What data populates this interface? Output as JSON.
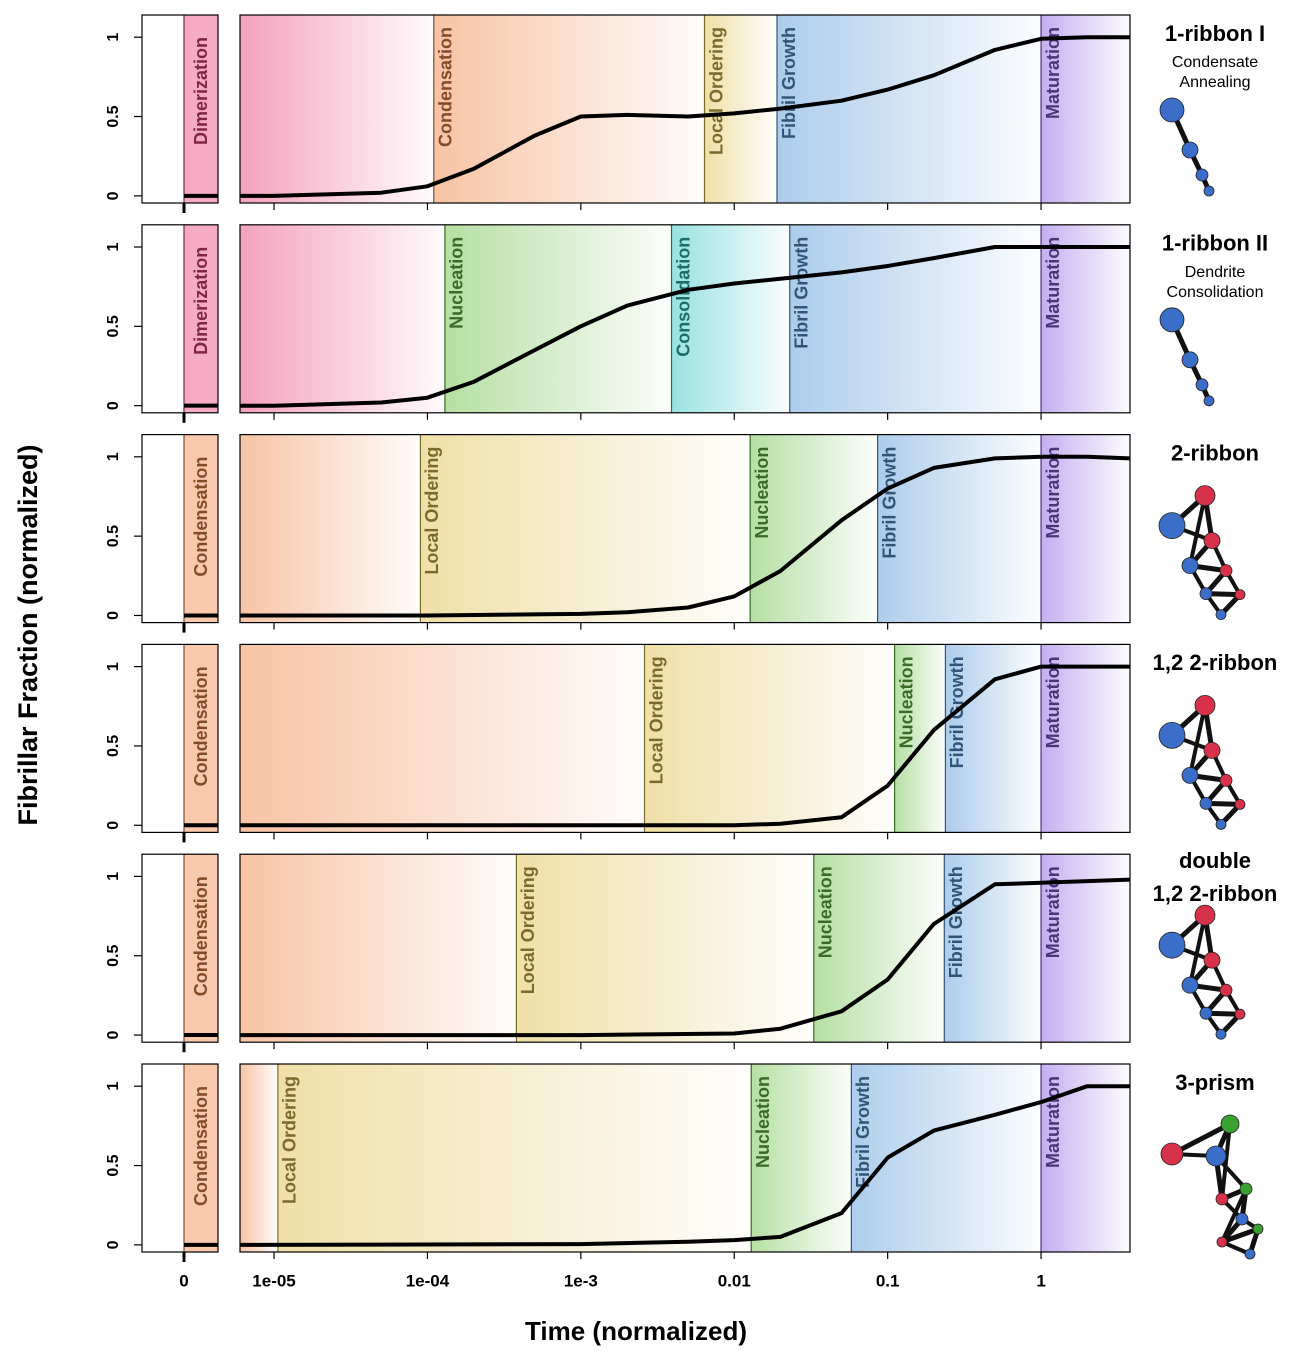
{
  "chart_data": {
    "type": "line",
    "xlabel": "Time (normalized)",
    "ylabel": "Fibrillar Fraction (normalized)",
    "xscale": "log",
    "xlim": [
      6e-06,
      3.8
    ],
    "xticks": [
      0,
      {
        "value": 1e-05,
        "label": "1e-05"
      },
      {
        "value": 0.0001,
        "label": "1e-04"
      },
      {
        "value": 0.001,
        "label": "1e-3"
      },
      0.01,
      0.1,
      1
    ],
    "ylim": [
      -0.045,
      1.14
    ],
    "yticks": [
      0,
      0.5,
      1
    ],
    "line_color": "#000000",
    "panels": [
      {
        "title": [
          "1-ribbon I"
        ],
        "subtitle": [
          "Condensate",
          "Annealing"
        ],
        "phases": [
          {
            "name": "Dimerization",
            "start": 0,
            "color": "#e8457a"
          },
          {
            "name": "Condensation",
            "start": 0.00011,
            "color": "#f0884a"
          },
          {
            "name": "Local Ordering",
            "start": 0.0064,
            "color": "#e0c050"
          },
          {
            "name": "Fibril Growth",
            "start": 0.019,
            "color": "#5a9ad8"
          },
          {
            "name": "Maturation",
            "start": 1,
            "color": "#8a5ee0"
          }
        ],
        "value_at_0": 0,
        "x": [
          6e-06,
          1e-05,
          5e-05,
          0.0001,
          0.0002,
          0.0005,
          0.001,
          0.002,
          0.005,
          0.01,
          0.02,
          0.05,
          0.1,
          0.2,
          0.5,
          1,
          2,
          3.8
        ],
        "values": [
          0,
          0,
          0.02,
          0.06,
          0.17,
          0.38,
          0.5,
          0.51,
          0.5,
          0.52,
          0.55,
          0.6,
          0.67,
          0.76,
          0.92,
          0.99,
          1,
          1
        ]
      },
      {
        "title": [
          "1-ribbon II"
        ],
        "subtitle": [
          "Dendrite",
          "Consolidation"
        ],
        "phases": [
          {
            "name": "Dimerization",
            "start": 0,
            "color": "#e8457a"
          },
          {
            "name": "Nucleation",
            "start": 0.00013,
            "color": "#6cc048"
          },
          {
            "name": "Consolidation",
            "start": 0.0039,
            "color": "#34c4c4"
          },
          {
            "name": "Fibril Growth",
            "start": 0.023,
            "color": "#5a9ad8"
          },
          {
            "name": "Maturation",
            "start": 1,
            "color": "#8a5ee0"
          }
        ],
        "value_at_0": 0,
        "x": [
          6e-06,
          1e-05,
          5e-05,
          0.0001,
          0.0002,
          0.0005,
          0.001,
          0.002,
          0.005,
          0.01,
          0.02,
          0.05,
          0.1,
          0.2,
          0.5,
          1,
          3.8
        ],
        "values": [
          0,
          0,
          0.02,
          0.05,
          0.15,
          0.35,
          0.5,
          0.63,
          0.73,
          0.77,
          0.8,
          0.84,
          0.88,
          0.93,
          1,
          1,
          1
        ]
      },
      {
        "title": [
          "2-ribbon"
        ],
        "subtitle": [],
        "phases": [
          {
            "name": "Condensation",
            "start": 0,
            "color": "#f0884a"
          },
          {
            "name": "Local Ordering",
            "start": 9e-05,
            "color": "#e0c050"
          },
          {
            "name": "Nucleation",
            "start": 0.0127,
            "color": "#6cc048"
          },
          {
            "name": "Fibril Growth",
            "start": 0.086,
            "color": "#5a9ad8"
          },
          {
            "name": "Maturation",
            "start": 1,
            "color": "#8a5ee0"
          }
        ],
        "value_at_0": 0,
        "x": [
          6e-06,
          0.0001,
          0.001,
          0.002,
          0.005,
          0.01,
          0.02,
          0.05,
          0.1,
          0.2,
          0.5,
          1,
          2,
          3.8
        ],
        "values": [
          0,
          0,
          0.01,
          0.02,
          0.05,
          0.12,
          0.28,
          0.6,
          0.8,
          0.93,
          0.99,
          1,
          1,
          0.99
        ]
      },
      {
        "title": [
          "1,2 2-ribbon"
        ],
        "subtitle": [],
        "phases": [
          {
            "name": "Condensation",
            "start": 0,
            "color": "#f0884a"
          },
          {
            "name": "Local Ordering",
            "start": 0.0026,
            "color": "#e0c050"
          },
          {
            "name": "Nucleation",
            "start": 0.111,
            "color": "#6cc048"
          },
          {
            "name": "Fibril Growth",
            "start": 0.238,
            "color": "#5a9ad8"
          },
          {
            "name": "Maturation",
            "start": 1,
            "color": "#8a5ee0"
          }
        ],
        "value_at_0": 0,
        "x": [
          6e-06,
          0.001,
          0.01,
          0.02,
          0.05,
          0.1,
          0.2,
          0.5,
          1,
          3.8
        ],
        "values": [
          0,
          0,
          0,
          0.01,
          0.05,
          0.25,
          0.6,
          0.92,
          1,
          1
        ]
      },
      {
        "title": [
          "double",
          "1,2 2-ribbon"
        ],
        "subtitle": [],
        "phases": [
          {
            "name": "Condensation",
            "start": 0,
            "color": "#f0884a"
          },
          {
            "name": "Local Ordering",
            "start": 0.00038,
            "color": "#e0c050"
          },
          {
            "name": "Nucleation",
            "start": 0.033,
            "color": "#6cc048"
          },
          {
            "name": "Fibril Growth",
            "start": 0.234,
            "color": "#5a9ad8"
          },
          {
            "name": "Maturation",
            "start": 1,
            "color": "#8a5ee0"
          }
        ],
        "value_at_0": 0,
        "x": [
          6e-06,
          0.001,
          0.01,
          0.02,
          0.05,
          0.1,
          0.2,
          0.5,
          1,
          3.8
        ],
        "values": [
          0,
          0,
          0.01,
          0.04,
          0.15,
          0.35,
          0.7,
          0.95,
          0.96,
          0.98
        ]
      },
      {
        "title": [
          "3-prism"
        ],
        "subtitle": [],
        "phases": [
          {
            "name": "Condensation",
            "start": 0,
            "color": "#f0884a"
          },
          {
            "name": "Local Ordering",
            "start": 1.06e-05,
            "color": "#e0c050"
          },
          {
            "name": "Nucleation",
            "start": 0.0129,
            "color": "#6cc048"
          },
          {
            "name": "Fibril Growth",
            "start": 0.058,
            "color": "#5a9ad8"
          },
          {
            "name": "Maturation",
            "start": 1,
            "color": "#8a5ee0"
          }
        ],
        "value_at_0": 0,
        "x": [
          6e-06,
          0.001,
          0.005,
          0.01,
          0.02,
          0.05,
          0.1,
          0.2,
          0.5,
          1,
          2,
          3.8
        ],
        "values": [
          0,
          0.005,
          0.02,
          0.03,
          0.05,
          0.2,
          0.55,
          0.72,
          0.82,
          0.9,
          1,
          1
        ]
      }
    ]
  }
}
